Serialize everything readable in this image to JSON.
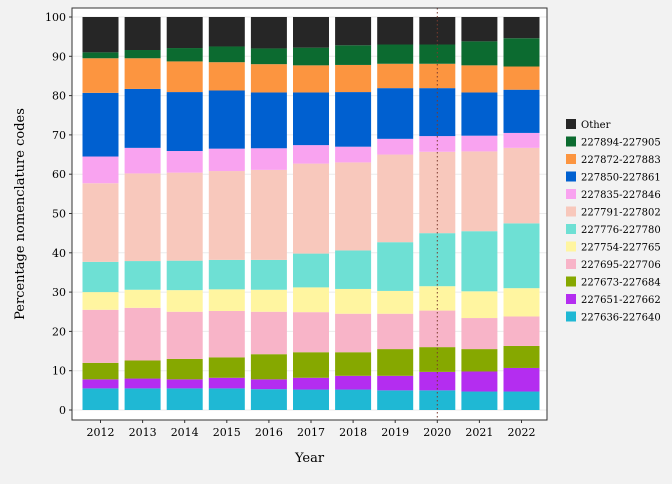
{
  "chart_data": {
    "type": "bar",
    "stacked": true,
    "xlabel": "Year",
    "ylabel": "Percentage nomenclature codes",
    "ylim": [
      0,
      100
    ],
    "yticks": [
      0,
      10,
      20,
      30,
      40,
      50,
      60,
      70,
      80,
      90,
      100
    ],
    "categories": [
      "2012",
      "2013",
      "2014",
      "2015",
      "2016",
      "2017",
      "2018",
      "2019",
      "2020",
      "2021",
      "2022"
    ],
    "reference_line": {
      "x": "2020",
      "style": "dotted",
      "color": "#7a3b2e"
    },
    "legend_position": "right",
    "series": [
      {
        "name": "227636-227640",
        "color": "#1fb8d4",
        "values": [
          5.5,
          5.5,
          5.5,
          5.5,
          5.3,
          5.2,
          5.2,
          5.0,
          5.0,
          4.7,
          4.7
        ]
      },
      {
        "name": "227651-227662",
        "color": "#b42df0",
        "values": [
          2.3,
          2.5,
          2.3,
          2.7,
          2.5,
          3.0,
          3.5,
          3.7,
          4.7,
          5.1,
          6.0
        ]
      },
      {
        "name": "227673-227684",
        "color": "#86a800",
        "values": [
          4.2,
          4.6,
          5.2,
          5.2,
          6.4,
          6.5,
          6.0,
          6.8,
          6.3,
          5.7,
          5.6
        ]
      },
      {
        "name": "227695-227706",
        "color": "#f8b4c8",
        "values": [
          13.5,
          13.4,
          12.0,
          11.8,
          10.8,
          10.2,
          9.8,
          9.0,
          9.3,
          7.9,
          7.5
        ]
      },
      {
        "name": "227754-227765",
        "color": "#fff5a0",
        "values": [
          4.5,
          4.6,
          5.5,
          5.5,
          5.6,
          6.3,
          6.3,
          5.8,
          6.2,
          6.8,
          7.2
        ]
      },
      {
        "name": "227776-227780",
        "color": "#6ee0d4",
        "values": [
          7.7,
          7.3,
          7.5,
          7.5,
          7.6,
          8.6,
          9.8,
          12.4,
          13.5,
          15.3,
          16.5
        ]
      },
      {
        "name": "227791-227802",
        "color": "#f8c8bc",
        "values": [
          20.0,
          22.3,
          22.4,
          22.6,
          22.9,
          22.9,
          22.4,
          22.3,
          20.7,
          20.3,
          19.2
        ]
      },
      {
        "name": "227835-227846",
        "color": "#f9a3f0",
        "values": [
          6.8,
          6.5,
          5.5,
          5.7,
          5.5,
          4.7,
          4.0,
          4.0,
          4.0,
          4.0,
          3.8
        ]
      },
      {
        "name": "227850-227861",
        "color": "#0060d0",
        "values": [
          16.2,
          15.0,
          15.0,
          14.8,
          14.2,
          13.4,
          13.9,
          12.9,
          12.2,
          11.0,
          11.0
        ]
      },
      {
        "name": "227872-227883",
        "color": "#fc9540",
        "values": [
          8.8,
          7.8,
          7.8,
          7.2,
          7.2,
          6.9,
          6.9,
          6.2,
          6.2,
          6.9,
          5.9
        ]
      },
      {
        "name": "227894-227905",
        "color": "#0c6b30",
        "values": [
          1.5,
          2.1,
          3.4,
          4.0,
          4.0,
          4.5,
          5.0,
          4.9,
          4.9,
          6.1,
          7.2
        ]
      },
      {
        "name": "Other",
        "color": "#262626",
        "values": [
          9.0,
          8.4,
          7.9,
          7.5,
          8.0,
          7.8,
          7.2,
          7.0,
          7.0,
          6.2,
          5.4
        ]
      }
    ]
  }
}
